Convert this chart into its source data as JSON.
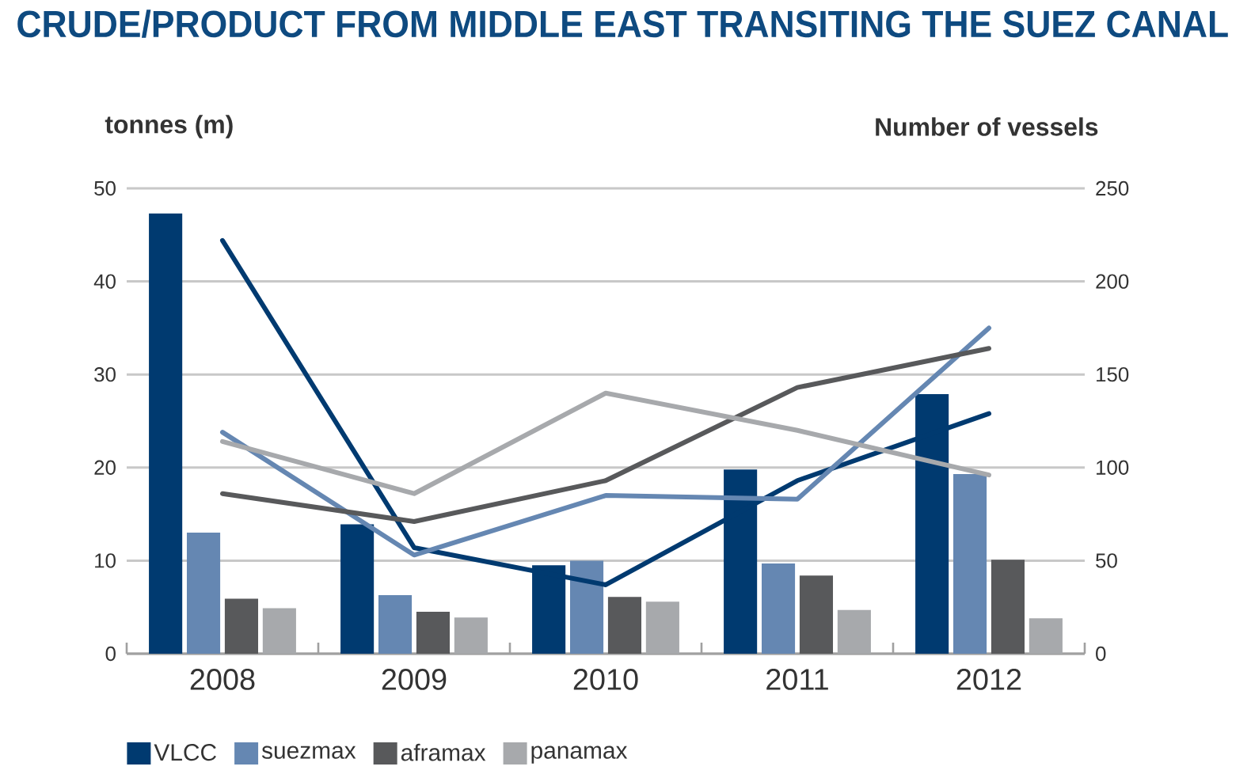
{
  "chart_data": {
    "type": "bar",
    "title": "CRUDE/PRODUCT FROM MIDDLE EAST TRANSITING THE SUEZ CANAL",
    "ylabel": "tonnes (m)",
    "y2label": "Number of vessels",
    "categories": [
      "2008",
      "2009",
      "2010",
      "2011",
      "2012"
    ],
    "ylim": [
      0,
      50
    ],
    "yticks": [
      0,
      10,
      20,
      30,
      40,
      50
    ],
    "y2lim": [
      0,
      250
    ],
    "y2ticks": [
      0,
      50,
      100,
      150,
      200,
      250
    ],
    "grid": "y",
    "legend": "bottom",
    "series": [
      {
        "name": "VLCC",
        "color": "#003a70",
        "values": [
          47.3,
          13.9,
          9.5,
          19.8,
          27.9
        ]
      },
      {
        "name": "suezmax",
        "color": "#6587b2",
        "values": [
          13.0,
          6.3,
          10.0,
          9.7,
          19.3
        ]
      },
      {
        "name": "aframax",
        "color": "#58595b",
        "values": [
          5.9,
          4.5,
          6.1,
          8.4,
          10.1
        ]
      },
      {
        "name": "panamax",
        "color": "#a7a9ac",
        "values": [
          4.9,
          3.9,
          5.6,
          4.7,
          3.8
        ]
      },
      {
        "type": "line",
        "axis": "y2",
        "color": "#003a70",
        "values": [
          222,
          57,
          37,
          93,
          129
        ]
      },
      {
        "type": "line",
        "axis": "y2",
        "color": "#6587b2",
        "values": [
          119,
          53,
          85,
          83,
          175
        ]
      },
      {
        "type": "line",
        "axis": "y2",
        "color": "#58595b",
        "values": [
          86,
          71,
          93,
          143,
          164
        ]
      },
      {
        "type": "line",
        "axis": "y2",
        "color": "#a7a9ac",
        "values": [
          114,
          86,
          140,
          120,
          96
        ]
      }
    ]
  }
}
